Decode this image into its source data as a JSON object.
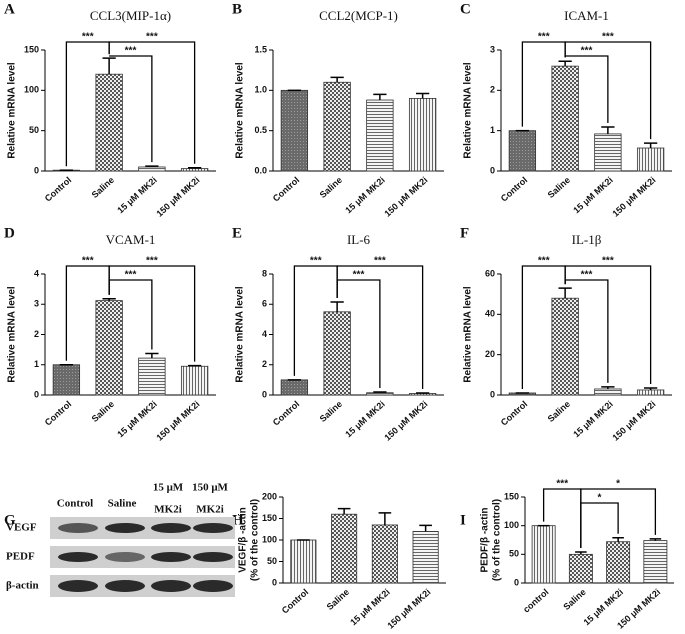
{
  "chart_data": [
    {
      "type": "bar",
      "panel_label": "A",
      "title": "CCL3(MIP-1α)",
      "ylabel": "Relative mRNA level",
      "categories": [
        "Control",
        "Saline",
        "15 μM MK2i",
        "150 μM MK2i"
      ],
      "values": [
        1,
        120,
        5,
        3
      ],
      "errors": [
        0,
        20,
        1,
        1
      ],
      "ylim": [
        0,
        150
      ],
      "yticks": [
        0,
        50,
        100,
        150
      ],
      "patterns": [
        "dense",
        "checker",
        "hlines",
        "vlines"
      ],
      "brackets": [
        {
          "pair": [
            0,
            1
          ],
          "label": "***"
        },
        {
          "pair": [
            1,
            2
          ],
          "label": "***"
        },
        {
          "pair": [
            1,
            3
          ],
          "label": "***"
        }
      ]
    },
    {
      "type": "bar",
      "panel_label": "B",
      "title": "CCL2(MCP-1)",
      "ylabel": "Relative mRNA level",
      "categories": [
        "Control",
        "Saline",
        "15 μM MK2i",
        "150 μM MK2i"
      ],
      "values": [
        1.0,
        1.1,
        0.88,
        0.9
      ],
      "errors": [
        0,
        0.06,
        0.07,
        0.06
      ],
      "ylim": [
        0,
        1.5
      ],
      "yticks": [
        {
          "value": 0,
          "label": "0.0"
        },
        0.5,
        {
          "value": 1,
          "label": "1.0"
        },
        1.5
      ],
      "patterns": [
        "dense",
        "checker",
        "hlines",
        "vlines"
      ],
      "brackets": []
    },
    {
      "type": "bar",
      "panel_label": "C",
      "title": "ICAM-1",
      "ylabel": "Relative mRNA level",
      "categories": [
        "Control",
        "Saline",
        "15 μM MK2i",
        "150 μM MK2i"
      ],
      "values": [
        1,
        2.6,
        0.92,
        0.57
      ],
      "errors": [
        0,
        0.12,
        0.17,
        0.12
      ],
      "ylim": [
        0,
        3
      ],
      "yticks": [
        0,
        1,
        2,
        3
      ],
      "patterns": [
        "dense",
        "checker",
        "hlines",
        "vlines"
      ],
      "brackets": [
        {
          "pair": [
            0,
            1
          ],
          "label": "***"
        },
        {
          "pair": [
            1,
            2
          ],
          "label": "***"
        },
        {
          "pair": [
            1,
            3
          ],
          "label": "***"
        }
      ]
    },
    {
      "type": "bar",
      "panel_label": "D",
      "title": "VCAM-1",
      "ylabel": "Relative mRNA level",
      "categories": [
        "Control",
        "Saline",
        "15 μM MK2i",
        "150 μM MK2i"
      ],
      "values": [
        1,
        3.12,
        1.22,
        0.95
      ],
      "errors": [
        0,
        0.06,
        0.15,
        0.02
      ],
      "ylim": [
        0,
        4
      ],
      "yticks": [
        0,
        1,
        2,
        3,
        4
      ],
      "patterns": [
        "dense",
        "checker",
        "hlines",
        "vlines"
      ],
      "brackets": [
        {
          "pair": [
            0,
            1
          ],
          "label": "***"
        },
        {
          "pair": [
            1,
            2
          ],
          "label": "***"
        },
        {
          "pair": [
            1,
            3
          ],
          "label": "***"
        }
      ]
    },
    {
      "type": "bar",
      "panel_label": "E",
      "title": "IL-6",
      "ylabel": "Relative mRNA level",
      "categories": [
        "Control",
        "Saline",
        "15 μM MK2i",
        "150 μM MK2i"
      ],
      "values": [
        1,
        5.5,
        0.15,
        0.1
      ],
      "errors": [
        0,
        0.65,
        0.05,
        0.03
      ],
      "ylim": [
        0,
        8
      ],
      "yticks": [
        0,
        2,
        4,
        6,
        8
      ],
      "patterns": [
        "dense",
        "checker",
        "hlines",
        "vlines"
      ],
      "brackets": [
        {
          "pair": [
            0,
            1
          ],
          "label": "***"
        },
        {
          "pair": [
            1,
            2
          ],
          "label": "***"
        },
        {
          "pair": [
            1,
            3
          ],
          "label": "***"
        }
      ]
    },
    {
      "type": "bar",
      "panel_label": "F",
      "title": "IL-1β",
      "ylabel": "Relative mRNA level",
      "categories": [
        "Control",
        "Saline",
        "15 μM MK2i",
        "150 μM MK2i"
      ],
      "values": [
        1,
        48,
        3,
        2.5
      ],
      "errors": [
        0,
        5,
        1,
        1
      ],
      "ylim": [
        0,
        60
      ],
      "yticks": [
        0,
        20,
        40,
        60
      ],
      "patterns": [
        "dense",
        "checker",
        "hlines",
        "vlines"
      ],
      "brackets": [
        {
          "pair": [
            0,
            1
          ],
          "label": "***"
        },
        {
          "pair": [
            1,
            2
          ],
          "label": "***"
        },
        {
          "pair": [
            1,
            3
          ],
          "label": "***"
        }
      ]
    },
    {
      "type": "bar",
      "panel_label": "H",
      "ylabel": [
        "VEGF/β -actin",
        "(% of the control)"
      ],
      "categories": [
        "Control",
        "Saline",
        "15 μM MK2i",
        "150 μM MK2i"
      ],
      "values": [
        100,
        160,
        135,
        120
      ],
      "errors": [
        0,
        13,
        28,
        14
      ],
      "ylim": [
        0,
        200
      ],
      "yticks": [
        0,
        50,
        100,
        150,
        200
      ],
      "patterns": [
        "vlines",
        "checker",
        "checker",
        "hlines"
      ],
      "brackets": []
    },
    {
      "type": "bar",
      "panel_label": "I",
      "ylabel": [
        "PEDF/β -actin",
        "(% of the control)"
      ],
      "categories": [
        "control",
        "Saline",
        "15 μM MK2i",
        "150 μM MK2i"
      ],
      "values": [
        100,
        50,
        72,
        74
      ],
      "errors": [
        0,
        4,
        7,
        3
      ],
      "ylim": [
        0,
        150
      ],
      "yticks": [
        0,
        50,
        100,
        150
      ],
      "patterns": [
        "vlines",
        "checker",
        "checker",
        "hlines"
      ],
      "brackets": [
        {
          "pair": [
            0,
            1
          ],
          "label": "***"
        },
        {
          "pair": [
            1,
            2
          ],
          "label": "*"
        },
        {
          "pair": [
            1,
            3
          ],
          "label": "*"
        }
      ]
    }
  ],
  "blot": {
    "panel_label": "G",
    "columns": [
      [
        "Control"
      ],
      [
        "Saline"
      ],
      [
        "15 μM",
        "MK2i"
      ],
      [
        "150 μM",
        "MK2i"
      ]
    ],
    "rows": [
      "VEGF",
      "PEDF",
      "β-actin"
    ]
  }
}
